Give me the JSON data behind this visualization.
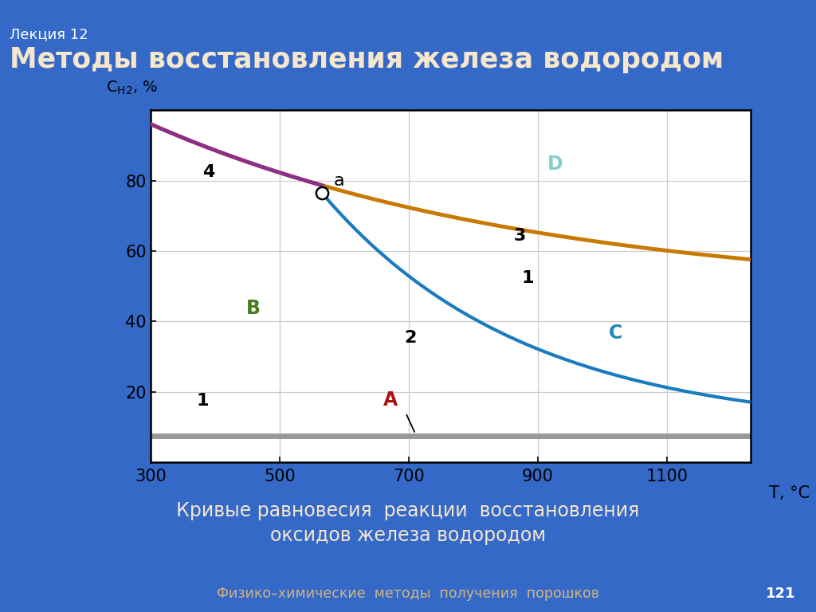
{
  "bg_color": "#3569c8",
  "slide_title_small": "Лекция 12",
  "slide_title_main": "Методы восстановления железа водородом",
  "subtitle_line1": "Кривые равновесия  реакции  восстановления",
  "subtitle_line2": "оксидов железа водородом",
  "footer_text": "Физико–химические  методы  получения  порошков",
  "footer_page": "121",
  "plot_bg": "#ffffff",
  "xlabel": "T, °C",
  "xmin": 300,
  "xmax": 1230,
  "ymin": 0,
  "ymax": 100,
  "xticks": [
    300,
    500,
    700,
    900,
    1100
  ],
  "yticks": [
    20,
    40,
    60,
    80
  ],
  "curve_orange_color": "#c87a00",
  "curve_blue_color": "#1a7bbf",
  "curve_purple_color": "#8b2f8b",
  "curve_gray_color": "#999999",
  "label_A_color": "#aa1111",
  "label_B_color": "#4a7c20",
  "label_C_color": "#2288bb",
  "label_D_color": "#88cccc",
  "point_a_x": 565,
  "point_a_y": 76.5,
  "orange_T0": 300,
  "orange_Tend": 1230,
  "orange_y0": 96,
  "orange_yend": 47,
  "orange_decay": 0.00165,
  "blue_T0": 565,
  "blue_Tend": 1200,
  "blue_y0": 76.5,
  "blue_yend": 9,
  "blue_decay": 0.0032,
  "gray_y": 7.5,
  "gray_T0": 300,
  "gray_Tend": 1230
}
